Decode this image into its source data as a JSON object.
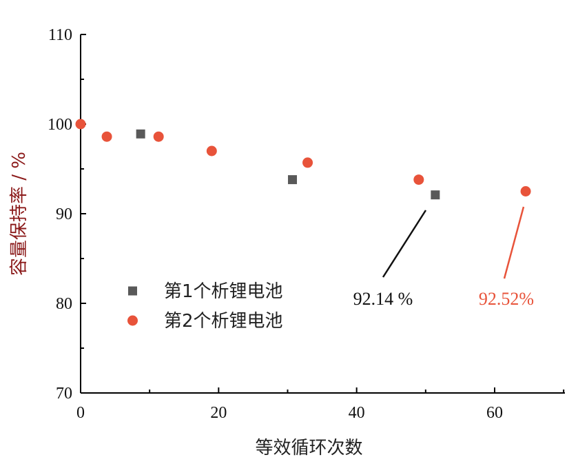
{
  "chart_data": {
    "type": "scatter",
    "xlabel": "等效循环次数",
    "ylabel": "容量保持率 / %",
    "xlim": [
      0,
      70
    ],
    "ylim": [
      70,
      110
    ],
    "x_ticks": [
      0,
      20,
      40,
      60
    ],
    "y_ticks": [
      70,
      80,
      90,
      100,
      110
    ],
    "grid": false,
    "legend_position": "center-left",
    "series": [
      {
        "name": "第1个析锂电池",
        "marker": "square",
        "color": "#595959",
        "x": [
          8.7,
          30.7,
          51.4
        ],
        "y": [
          98.9,
          93.8,
          92.1
        ]
      },
      {
        "name": "第2个析锂电池",
        "marker": "circle",
        "color": "#e8533a",
        "x": [
          0,
          3.8,
          11.3,
          19.0,
          32.9,
          49.0,
          64.5
        ],
        "y": [
          100.0,
          98.6,
          98.6,
          97.0,
          95.7,
          93.8,
          92.5
        ]
      }
    ],
    "annotations": [
      {
        "text": "92.14 %",
        "color": "#111111",
        "target": [
          51.4,
          92.1
        ],
        "label_at": [
          50,
          80.5
        ]
      },
      {
        "text": "92.52%",
        "color": "#e8533a",
        "target": [
          64.5,
          92.5
        ],
        "label_at": [
          66.5,
          80.5
        ]
      }
    ]
  }
}
